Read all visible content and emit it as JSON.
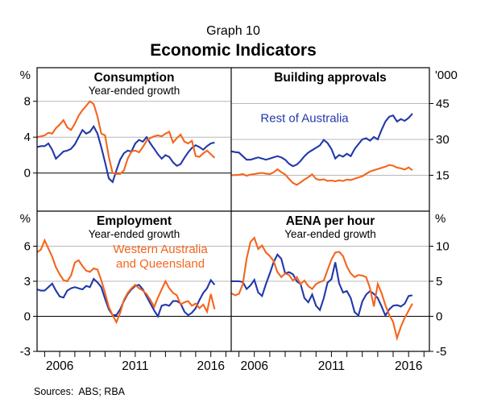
{
  "header": {
    "graph_label": "Graph 10",
    "title": "Economic Indicators"
  },
  "footer": {
    "sources_label": "Sources:",
    "sources_value": "ABS; RBA"
  },
  "colors": {
    "blue": "#2238aa",
    "orange": "#f4651d",
    "grid": "#b8b8b8",
    "axis": "#000000",
    "text": "#000000"
  },
  "x_axis": {
    "domain": [
      2004.5,
      2017.35
    ],
    "year_ticks": [
      2005,
      2006,
      2007,
      2008,
      2009,
      2010,
      2011,
      2012,
      2013,
      2014,
      2015,
      2016,
      2017
    ],
    "labeled_years": [
      2006,
      2011,
      2016
    ],
    "data_start": 2004.5,
    "data_step": 0.25
  },
  "chart_data": {
    "type": "line",
    "title": "Economic Indicators",
    "panels": [
      {
        "id": "consumption",
        "row": 0,
        "col": 0,
        "title": "Consumption",
        "subtitle": "Year-ended growth",
        "unit": "%",
        "axis_side": "left",
        "ylim": [
          -4.25,
          11.75
        ],
        "yticks": [
          0,
          4,
          8
        ],
        "zero_line": true,
        "series": [
          {
            "name": "Rest of Australia",
            "color": "blue",
            "values": [
              2.9,
              3.0,
              3.0,
              3.3,
              2.6,
              1.6,
              2.0,
              2.4,
              2.5,
              2.7,
              3.2,
              4.0,
              4.8,
              4.4,
              4.6,
              5.2,
              4.4,
              2.9,
              1.2,
              -0.6,
              -1.0,
              0.3,
              1.5,
              2.2,
              2.5,
              2.4,
              3.3,
              3.7,
              3.5,
              4.0,
              3.3,
              2.7,
              2.1,
              1.6,
              2.0,
              1.8,
              1.2,
              0.8,
              1.0,
              1.7,
              2.3,
              2.8,
              3.1,
              2.9,
              2.6,
              3.0,
              3.3,
              3.4
            ]
          },
          {
            "name": "Western Australia and Queensland",
            "color": "orange",
            "values": [
              4.0,
              4.1,
              4.2,
              4.5,
              4.4,
              5.0,
              5.4,
              5.9,
              5.1,
              4.8,
              5.5,
              6.4,
              7.0,
              7.5,
              8.0,
              7.7,
              6.3,
              4.4,
              4.2,
              1.8,
              0.0,
              -0.1,
              -0.1,
              0.3,
              1.6,
              2.4,
              2.5,
              2.3,
              2.9,
              3.6,
              3.9,
              4.1,
              4.2,
              4.1,
              4.4,
              4.6,
              3.4,
              3.9,
              4.3,
              3.5,
              3.3,
              3.6,
              1.9,
              1.8,
              2.2,
              2.5,
              2.1,
              1.7
            ]
          }
        ]
      },
      {
        "id": "building-approvals",
        "row": 0,
        "col": 1,
        "title": "Building approvals",
        "subtitle": "",
        "unit": "'000",
        "axis_side": "right",
        "ylim": [
          0,
          60
        ],
        "yticks": [
          15,
          30,
          45
        ],
        "zero_line": false,
        "annotation": {
          "lines": [
            "Rest of Australia"
          ],
          "color": "blue",
          "fx": 0.37,
          "fy": 0.38
        },
        "series": [
          {
            "name": "Rest of Australia",
            "color": "blue",
            "values": [
              25.0,
              24.7,
              24.5,
              23.0,
              21.5,
              21.5,
              22.0,
              22.5,
              22.0,
              21.5,
              22.0,
              22.5,
              23.0,
              22.5,
              21.5,
              19.8,
              18.8,
              19.5,
              21.0,
              23.0,
              24.5,
              25.5,
              26.5,
              27.5,
              29.8,
              28.5,
              26.0,
              22.0,
              23.5,
              22.8,
              24.0,
              23.0,
              26.0,
              28.0,
              30.0,
              30.5,
              29.5,
              31.0,
              30.0,
              34.0,
              37.5,
              39.5,
              40.0,
              37.5,
              38.5,
              37.8,
              39.0,
              40.8
            ]
          },
          {
            "name": "Western Australia and Queensland",
            "color": "orange",
            "values": [
              15.0,
              15.1,
              15.2,
              15.5,
              14.8,
              15.3,
              15.5,
              15.8,
              16.0,
              15.7,
              15.5,
              16.2,
              17.5,
              16.3,
              15.3,
              13.5,
              11.8,
              11.0,
              12.0,
              13.2,
              14.2,
              15.4,
              13.5,
              13.0,
              13.3,
              12.6,
              12.8,
              12.5,
              12.9,
              12.6,
              13.2,
              13.0,
              13.6,
              14.1,
              14.6,
              15.6,
              16.6,
              17.1,
              17.6,
              18.1,
              18.6,
              19.3,
              19.0,
              18.2,
              17.9,
              17.4,
              18.3,
              17.1
            ]
          }
        ]
      },
      {
        "id": "employment",
        "row": 1,
        "col": 0,
        "title": "Employment",
        "subtitle": "Year-ended growth",
        "unit": "%",
        "axis_side": "left",
        "ylim": [
          -3,
          9
        ],
        "yticks": [
          -3,
          0,
          3,
          6
        ],
        "zero_line": true,
        "annotation": {
          "lines": [
            "Western Australia",
            "and Queensland"
          ],
          "color": "orange",
          "fx": 0.635,
          "fy": 0.3
        },
        "series": [
          {
            "name": "Rest of Australia",
            "color": "blue",
            "values": [
              2.3,
              2.2,
              2.2,
              2.5,
              2.8,
              2.2,
              1.7,
              1.6,
              2.2,
              2.4,
              2.5,
              2.4,
              2.3,
              2.6,
              2.5,
              3.2,
              2.9,
              2.5,
              1.5,
              0.6,
              0.1,
              0.1,
              0.6,
              1.3,
              1.9,
              2.3,
              2.6,
              2.7,
              2.3,
              1.7,
              1.1,
              0.5,
              0.0,
              0.9,
              1.0,
              0.9,
              1.3,
              1.3,
              1.1,
              0.4,
              0.1,
              0.3,
              0.7,
              1.4,
              2.0,
              2.4,
              3.1,
              2.7
            ]
          },
          {
            "name": "Western Australia and Queensland",
            "color": "orange",
            "values": [
              5.5,
              5.7,
              6.5,
              5.8,
              5.1,
              4.2,
              3.6,
              3.1,
              3.0,
              3.5,
              4.6,
              4.8,
              4.3,
              3.9,
              3.8,
              4.1,
              4.0,
              3.1,
              2.0,
              0.8,
              0.1,
              -0.5,
              0.3,
              1.4,
              2.0,
              2.4,
              2.7,
              2.4,
              2.2,
              1.9,
              1.4,
              0.8,
              1.6,
              2.3,
              3.0,
              2.4,
              2.0,
              1.8,
              1.0,
              1.2,
              1.3,
              0.9,
              1.1,
              0.7,
              1.0,
              0.4,
              1.9,
              0.6
            ]
          }
        ]
      },
      {
        "id": "aena-per-hour",
        "row": 1,
        "col": 1,
        "title": "AENA per hour",
        "subtitle": "Year-ended growth",
        "unit": "%",
        "axis_side": "right",
        "ylim": [
          -5,
          15
        ],
        "yticks": [
          -5,
          0,
          5,
          10
        ],
        "zero_line": true,
        "series": [
          {
            "name": "Rest of Australia",
            "color": "blue",
            "values": [
              5.0,
              5.0,
              5.0,
              4.9,
              3.9,
              4.4,
              5.2,
              3.4,
              2.9,
              4.6,
              6.1,
              7.7,
              8.8,
              8.2,
              6.1,
              6.3,
              6.0,
              5.0,
              4.6,
              2.6,
              2.0,
              3.1,
              1.5,
              0.9,
              2.6,
              4.8,
              5.3,
              7.7,
              4.7,
              3.4,
              3.6,
              2.6,
              0.6,
              0.1,
              2.1,
              3.1,
              3.6,
              3.2,
              2.6,
              1.4,
              0.1,
              1.0,
              1.5,
              1.6,
              1.4,
              1.8,
              2.9,
              3.0
            ]
          },
          {
            "name": "Western Australia and Queensland",
            "color": "orange",
            "values": [
              3.3,
              3.0,
              3.2,
              4.6,
              8.2,
              10.6,
              11.2,
              9.6,
              10.1,
              9.1,
              8.6,
              7.9,
              6.3,
              5.6,
              6.1,
              5.9,
              5.1,
              5.6,
              4.6,
              5.1,
              4.3,
              3.9,
              4.6,
              4.9,
              5.1,
              6.6,
              8.1,
              9.1,
              9.2,
              8.6,
              7.1,
              6.1,
              5.6,
              5.9,
              5.8,
              5.6,
              4.0,
              1.4,
              4.6,
              3.3,
              1.6,
              0.2,
              -0.8,
              -3.1,
              -1.5,
              -0.2,
              0.8,
              1.8
            ]
          }
        ]
      }
    ]
  }
}
